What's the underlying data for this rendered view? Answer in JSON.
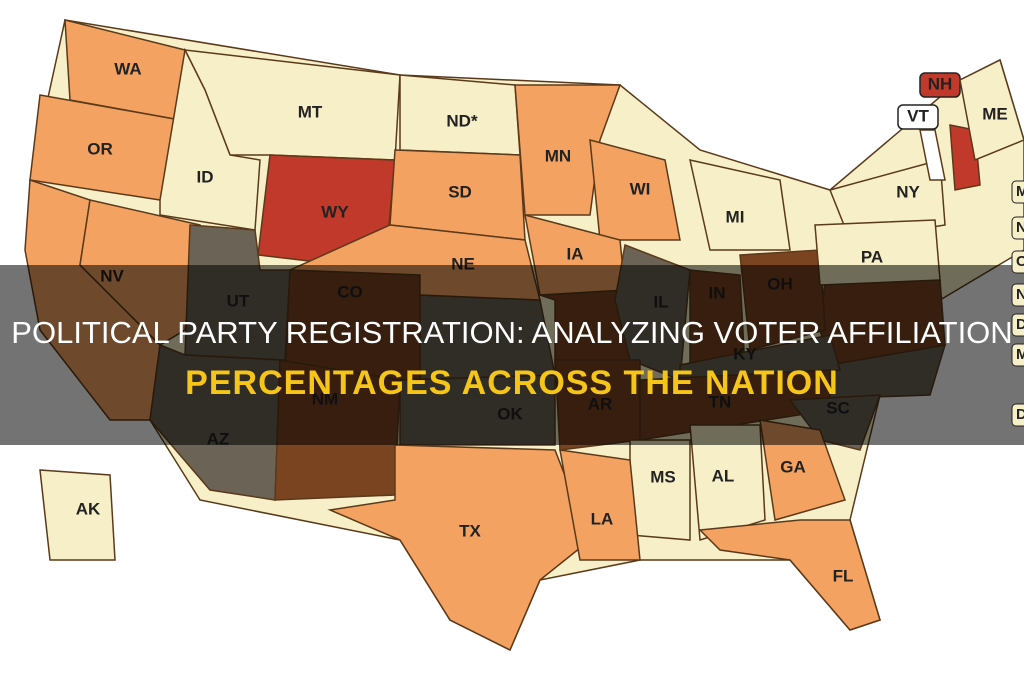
{
  "title": {
    "line1": "POLITICAL PARTY REGISTRATION: ANALYZING VOTER AFFILIATION",
    "line2": "PERCENTAGES ACROSS THE NATION"
  },
  "states": [
    {
      "label": "WA",
      "color": "#f4a261"
    },
    {
      "label": "OR",
      "color": "#f4a261"
    },
    {
      "label": "MT",
      "color": "#f7efc8"
    },
    {
      "label": "ID",
      "color": "#f7efc8"
    },
    {
      "label": "ND*",
      "color": "#f7efc8"
    },
    {
      "label": "WY",
      "color": "#c0392b"
    },
    {
      "label": "SD",
      "color": "#f4a261"
    },
    {
      "label": "MN",
      "color": "#f4a261"
    },
    {
      "label": "WI",
      "color": "#f4a261"
    },
    {
      "label": "MI",
      "color": "#f7efc8"
    },
    {
      "label": "NY",
      "color": "#f7efc8"
    },
    {
      "label": "VT",
      "color": "#ffffff"
    },
    {
      "label": "NH",
      "color": "#c0392b"
    },
    {
      "label": "ME",
      "color": "#f7efc8"
    },
    {
      "label": "NV",
      "color": "#f4a261"
    },
    {
      "label": "UT",
      "color": "#6b6356"
    },
    {
      "label": "CO",
      "color": "#7a4420"
    },
    {
      "label": "NE",
      "color": "#f4a261"
    },
    {
      "label": "IA",
      "color": "#f4a261"
    },
    {
      "label": "IL",
      "color": "#6b6356"
    },
    {
      "label": "IN",
      "color": "#7a4420"
    },
    {
      "label": "OH",
      "color": "#7a4420"
    },
    {
      "label": "PA",
      "color": "#f7efc8"
    },
    {
      "label": "KY",
      "color": "#6b6356"
    },
    {
      "label": "AZ",
      "color": "#6b6356"
    },
    {
      "label": "NM",
      "color": "#7a4420"
    },
    {
      "label": "OK",
      "color": "#6b6356"
    },
    {
      "label": "AR",
      "color": "#7a4420"
    },
    {
      "label": "TN",
      "color": "#7a4420"
    },
    {
      "label": "SC",
      "color": "#6b6356"
    },
    {
      "label": "MS",
      "color": "#f7efc8"
    },
    {
      "label": "AL",
      "color": "#f7efc8"
    },
    {
      "label": "GA",
      "color": "#f4a261"
    },
    {
      "label": "TX",
      "color": "#f4a261"
    },
    {
      "label": "LA",
      "color": "#f4a261"
    },
    {
      "label": "FL",
      "color": "#f4a261"
    },
    {
      "label": "AK",
      "color": "#f7efc8"
    }
  ],
  "side_labels": [
    "M",
    "N",
    "C",
    "N",
    "D",
    "M",
    "D"
  ]
}
